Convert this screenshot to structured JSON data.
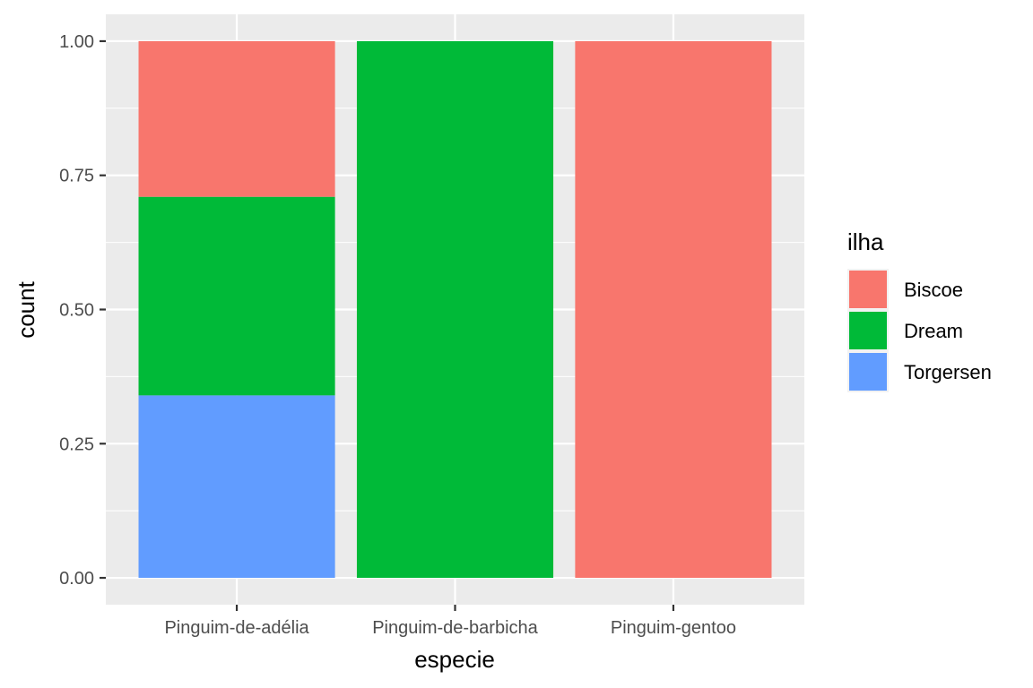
{
  "chart_data": {
    "type": "bar",
    "stacked": true,
    "categories": [
      "Pinguim-de-adélia",
      "Pinguim-de-barbicha",
      "Pinguim-gentoo"
    ],
    "series": [
      {
        "name": "Biscoe",
        "color": "#F8766D",
        "values": [
          0.29,
          0,
          1.0
        ]
      },
      {
        "name": "Dream",
        "color": "#00BA38",
        "values": [
          0.37,
          1.0,
          0
        ]
      },
      {
        "name": "Torgersen",
        "color": "#619CFF",
        "values": [
          0.34,
          0,
          0
        ]
      }
    ],
    "stack_order_bottom_to_top": [
      "Torgersen",
      "Dream",
      "Biscoe"
    ],
    "xlabel": "especie",
    "ylabel": "count",
    "ylim": [
      -0.05,
      1.05
    ],
    "yticks": [
      0,
      0.25,
      0.5,
      0.75,
      1.0
    ],
    "ytick_labels": [
      "0.00",
      "0.25",
      "0.50",
      "0.75",
      "1.00"
    ],
    "legend": {
      "title": "ilha",
      "position": "right"
    },
    "grid": true,
    "panel_background": "#EBEBEB"
  }
}
